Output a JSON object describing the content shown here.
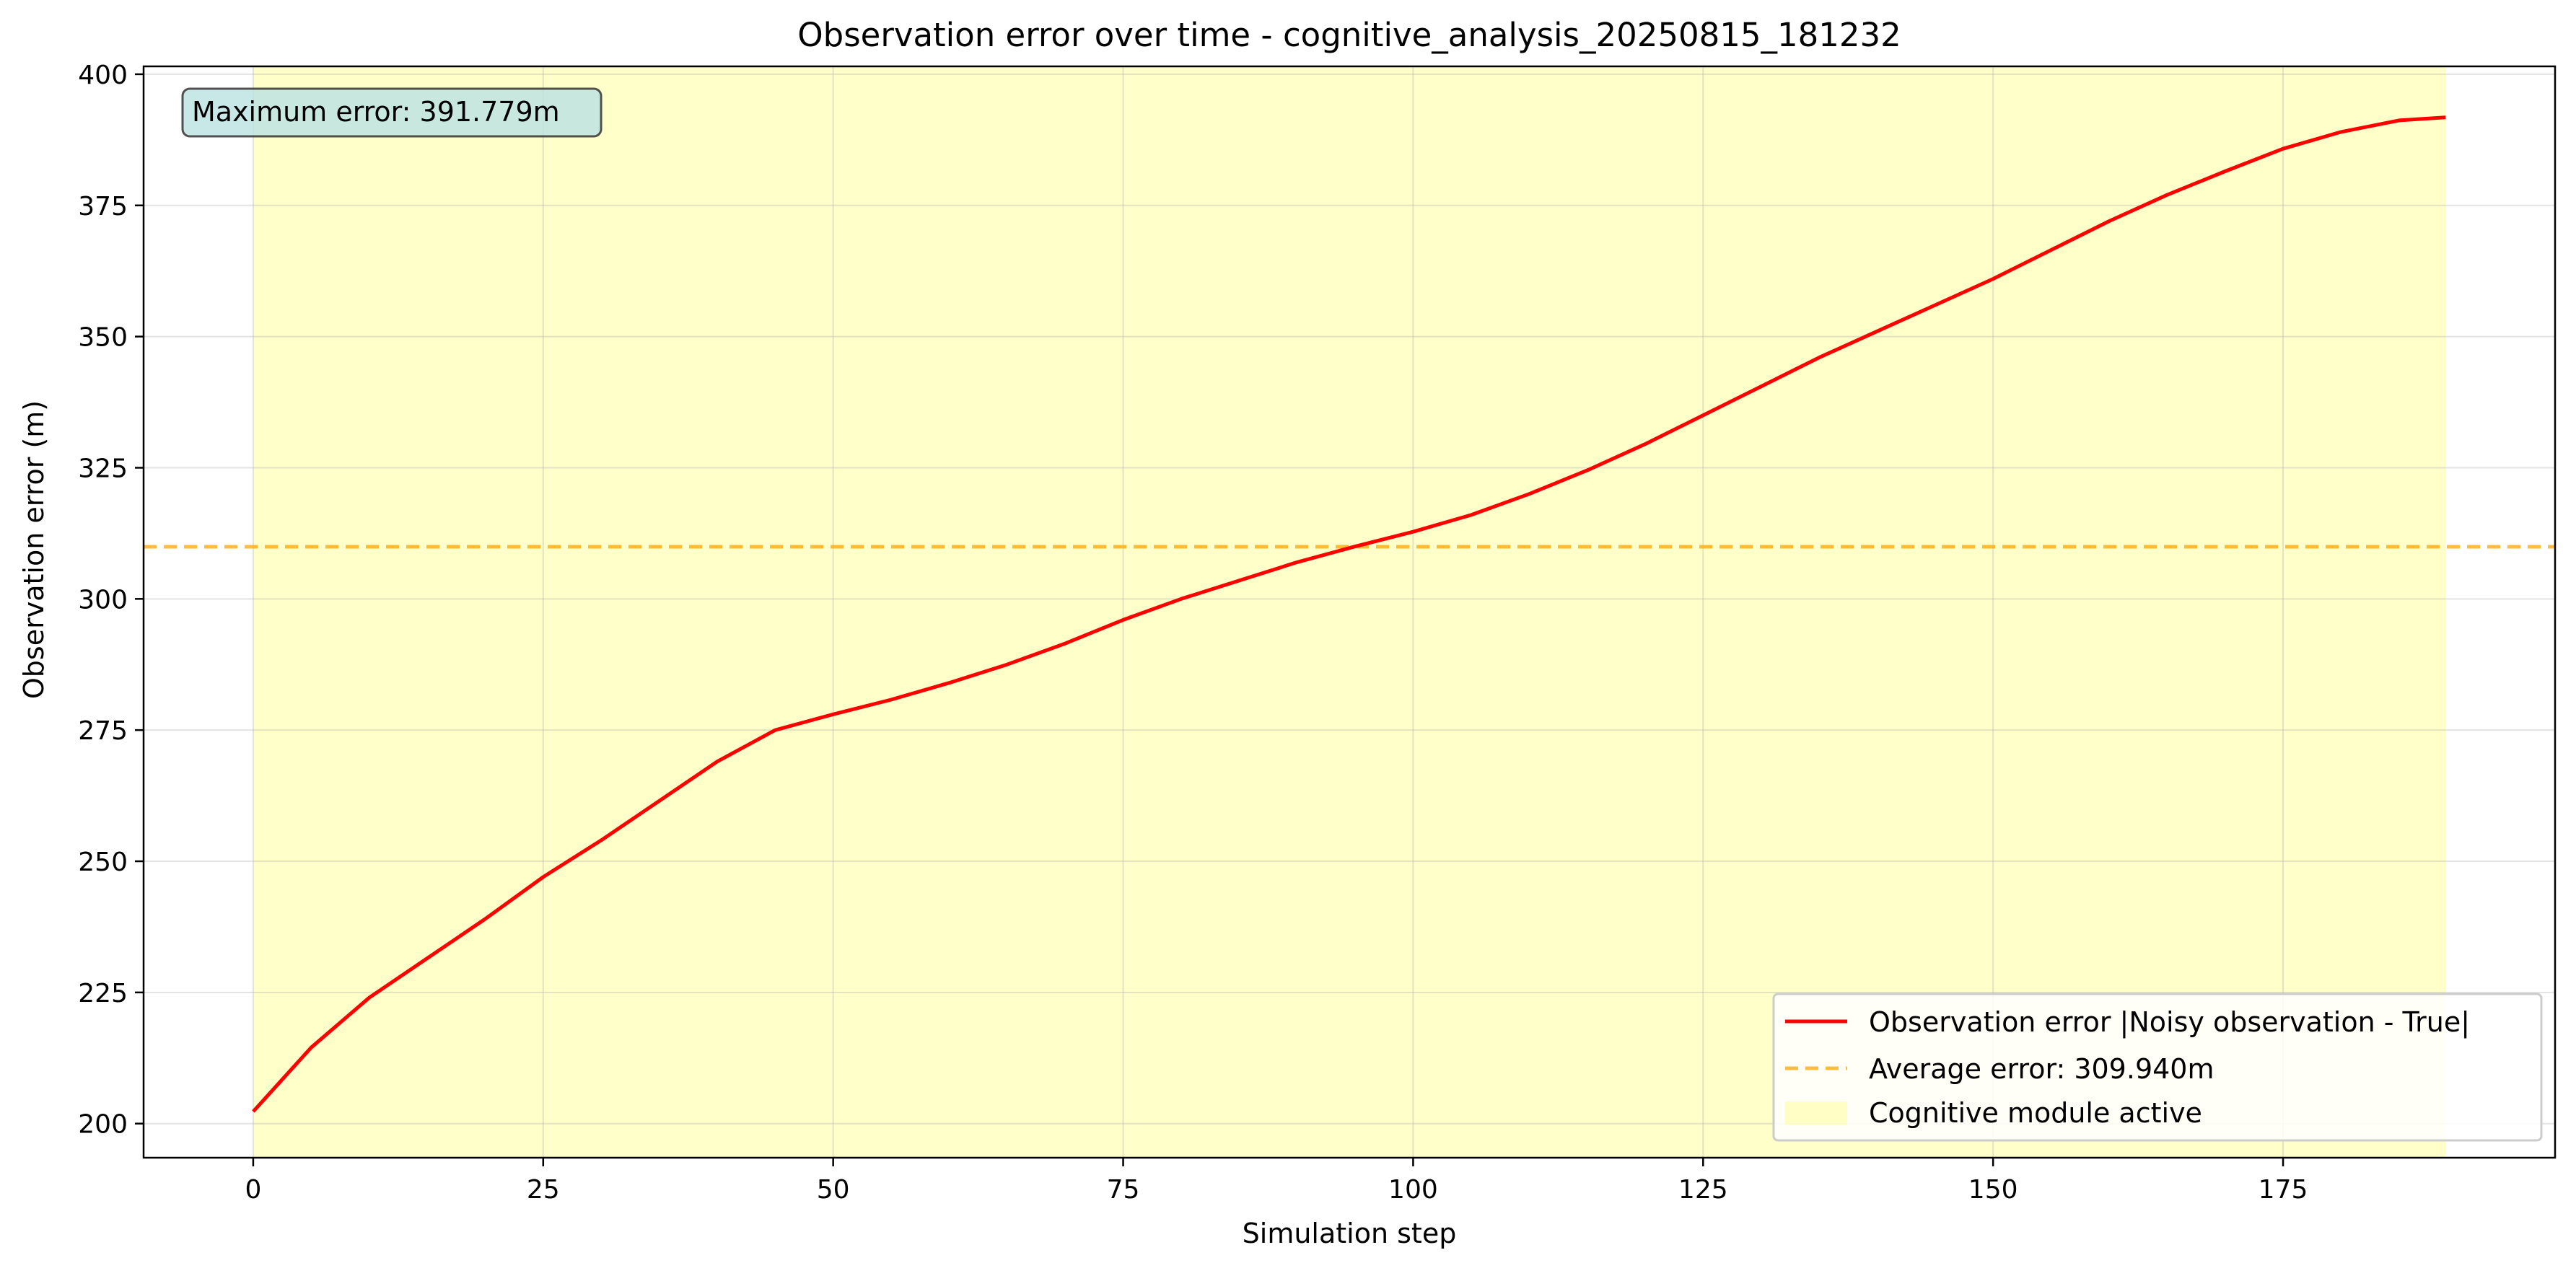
{
  "chart_data": {
    "type": "line",
    "title": "Observation error over time - cognitive_analysis_20250815_181232",
    "xlabel": "Simulation step",
    "ylabel": "Observation error (m)",
    "xlim": [
      -9.45,
      198.45
    ],
    "ylim": [
      193.5,
      401.5
    ],
    "xticks": [
      0,
      25,
      50,
      75,
      100,
      125,
      150,
      175
    ],
    "yticks": [
      200,
      225,
      250,
      275,
      300,
      325,
      350,
      375,
      400
    ],
    "grid": true,
    "legend_position": "lower right",
    "series": [
      {
        "name": "Observation error |Noisy observation - True|",
        "color": "#ff0000",
        "style": "solid",
        "points": [
          [
            0,
            202.3
          ],
          [
            5,
            214.5
          ],
          [
            10,
            224.0
          ],
          [
            15,
            231.5
          ],
          [
            20,
            239.0
          ],
          [
            25,
            247.0
          ],
          [
            30,
            254.0
          ],
          [
            35,
            261.5
          ],
          [
            40,
            269.0
          ],
          [
            45,
            275.0
          ],
          [
            50,
            278.0
          ],
          [
            55,
            280.8
          ],
          [
            60,
            284.0
          ],
          [
            65,
            287.5
          ],
          [
            70,
            291.5
          ],
          [
            75,
            296.0
          ],
          [
            80,
            300.0
          ],
          [
            85,
            303.5
          ],
          [
            90,
            307.0
          ],
          [
            95,
            310.0
          ],
          [
            100,
            312.8
          ],
          [
            105,
            316.0
          ],
          [
            110,
            320.0
          ],
          [
            115,
            324.5
          ],
          [
            120,
            329.5
          ],
          [
            125,
            335.0
          ],
          [
            130,
            340.5
          ],
          [
            135,
            346.0
          ],
          [
            140,
            351.0
          ],
          [
            145,
            356.0
          ],
          [
            150,
            361.0
          ],
          [
            155,
            366.5
          ],
          [
            160,
            372.0
          ],
          [
            165,
            377.0
          ],
          [
            170,
            381.5
          ],
          [
            175,
            385.8
          ],
          [
            180,
            389.0
          ],
          [
            185,
            391.2
          ],
          [
            189,
            391.779
          ]
        ]
      },
      {
        "name": "Average error: 309.940m",
        "color": "#ffa500",
        "style": "dashed",
        "value": 309.94
      }
    ],
    "shaded_region": {
      "name": "Cognitive module active",
      "color": "#ffff66",
      "opacity": 0.35,
      "x_range": [
        0,
        189
      ]
    },
    "annotation": {
      "text": "Maximum error: 391.779m",
      "background": "#bfe3e3"
    }
  }
}
